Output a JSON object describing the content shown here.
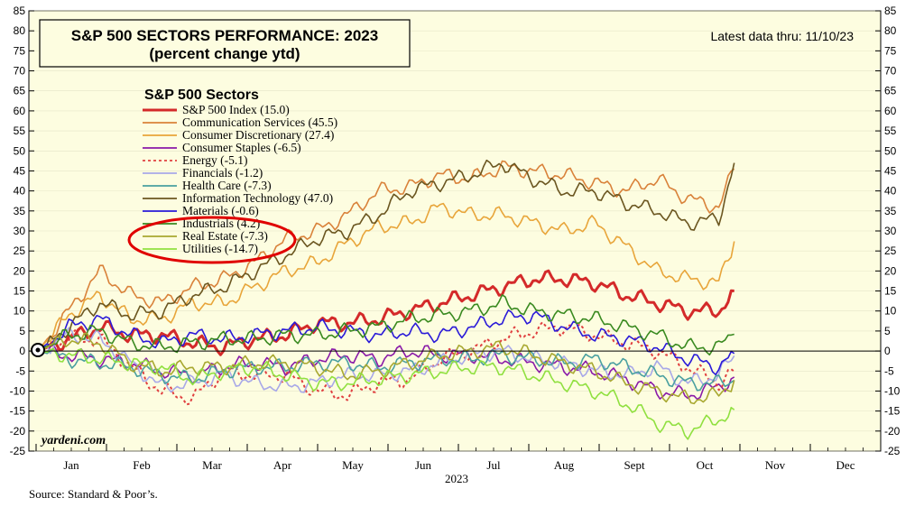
{
  "chart_data": {
    "type": "line",
    "title": "S&P 500 SECTORS PERFORMANCE: 2023",
    "subtitle": "(percent change ytd)",
    "note": "Latest data thru: 11/10/23",
    "legend_title": "S&P 500 Sectors",
    "xlabel": "2023",
    "source": "Source: Standard & Poor’s.",
    "brand": "yardeni.com",
    "ylim": [
      -25,
      85
    ],
    "yticks": [
      -25,
      -20,
      -15,
      -10,
      -5,
      0,
      5,
      10,
      15,
      20,
      25,
      30,
      35,
      40,
      45,
      50,
      55,
      60,
      65,
      70,
      75,
      80,
      85
    ],
    "months": [
      "Jan",
      "Feb",
      "Mar",
      "Apr",
      "May",
      "Jun",
      "Jul",
      "Aug",
      "Sept",
      "Oct",
      "Nov",
      "Dec"
    ],
    "x_weeks": [
      0,
      2,
      4,
      6,
      8,
      10,
      12,
      14,
      16,
      18,
      20,
      22,
      24,
      26,
      28,
      30,
      32,
      34,
      36,
      38,
      40,
      42,
      44,
      45
    ],
    "grid": true,
    "legend_position": "top-left",
    "annotation": "red ellipse around Real Estate and Utilities legend entries",
    "series": [
      {
        "name": "S&P 500 Index (15.0)",
        "color": "#d42a2a",
        "width": 3,
        "dash": "",
        "values": [
          0,
          3,
          6,
          4,
          4,
          2,
          1,
          3,
          4,
          7,
          7,
          8,
          10,
          12,
          14,
          16,
          18,
          18,
          17,
          14,
          12,
          10,
          10,
          15
        ]
      },
      {
        "name": "Communication Services (45.5)",
        "color": "#d9823a",
        "width": 1.6,
        "dash": "",
        "values": [
          0,
          10,
          20,
          14,
          12,
          16,
          18,
          22,
          28,
          30,
          34,
          40,
          41,
          44,
          43,
          46,
          45,
          44,
          42,
          40,
          43,
          38,
          36,
          45.5
        ]
      },
      {
        "name": "Consumer Discretionary (27.4)",
        "color": "#e8a53a",
        "width": 1.6,
        "dash": "",
        "values": [
          0,
          9,
          14,
          8,
          8,
          12,
          12,
          16,
          20,
          22,
          27,
          31,
          32,
          36,
          34,
          34,
          32,
          30,
          32,
          26,
          20,
          18,
          17,
          27.4
        ]
      },
      {
        "name": "Consumer Staples (-6.5)",
        "color": "#8a1aa8",
        "width": 1.6,
        "dash": "",
        "values": [
          0,
          -1,
          -2,
          -3,
          -5,
          -6,
          -4,
          -3,
          -4,
          -2,
          -1,
          -2,
          0,
          -1,
          -1,
          -2,
          -3,
          -4,
          -5,
          -7,
          -10,
          -11,
          -9,
          -6.5
        ]
      },
      {
        "name": "Energy (-5.1)",
        "color": "#e04040",
        "width": 2,
        "dash": "3,3",
        "values": [
          0,
          3,
          3,
          -4,
          -10,
          -12,
          -5,
          -6,
          -6,
          -10,
          -11,
          -8,
          -7,
          -2,
          0,
          3,
          5,
          6,
          4,
          2,
          0,
          -4,
          -8,
          -5.1
        ]
      },
      {
        "name": "Financials (-1.2)",
        "color": "#a8a8e8",
        "width": 1.6,
        "dash": "",
        "values": [
          0,
          4,
          3,
          -3,
          -9,
          -8,
          -6,
          -8,
          -9,
          -8,
          -6,
          -6,
          -5,
          -3,
          -1,
          0,
          -2,
          -3,
          -5,
          -6,
          -4,
          -8,
          -6,
          -1.2
        ]
      },
      {
        "name": "Health Care (-7.3)",
        "color": "#4aa0a0",
        "width": 1.6,
        "dash": "",
        "values": [
          0,
          -2,
          -3,
          -4,
          -6,
          -7,
          -5,
          -4,
          -4,
          -3,
          -3,
          -4,
          -3,
          -2,
          -2,
          -1,
          -2,
          -3,
          -2,
          -4,
          -6,
          -8,
          -8,
          -7.3
        ]
      },
      {
        "name": "Information Technology (47.0)",
        "color": "#6b5620",
        "width": 1.6,
        "dash": "",
        "values": [
          0,
          6,
          12,
          9,
          10,
          14,
          16,
          20,
          24,
          28,
          30,
          34,
          40,
          42,
          44,
          47,
          43,
          40,
          40,
          37,
          35,
          32,
          33,
          47.0
        ]
      },
      {
        "name": "Materials (-0.6)",
        "color": "#2a1ad8",
        "width": 1.6,
        "dash": "",
        "values": [
          0,
          6,
          8,
          4,
          2,
          4,
          3,
          4,
          5,
          6,
          5,
          4,
          5,
          4,
          6,
          8,
          9,
          6,
          4,
          3,
          1,
          -2,
          -4,
          -0.6
        ]
      },
      {
        "name": "Industrials (4.2)",
        "color": "#3a8a20",
        "width": 1.6,
        "dash": "",
        "values": [
          0,
          4,
          5,
          2,
          1,
          2,
          3,
          3,
          4,
          4,
          5,
          6,
          8,
          9,
          10,
          12,
          10,
          9,
          8,
          6,
          4,
          1,
          1,
          4.2
        ]
      },
      {
        "name": "Real Estate (-7.3)",
        "color": "#a8a830",
        "width": 1.6,
        "dash": "",
        "values": [
          0,
          3,
          2,
          -3,
          -5,
          -4,
          -4,
          -3,
          -3,
          -4,
          -6,
          -5,
          -3,
          -1,
          0,
          1,
          -1,
          -3,
          -5,
          -8,
          -10,
          -12,
          -11,
          -7.3
        ]
      },
      {
        "name": "Utilities (-14.7)",
        "color": "#90e040",
        "width": 1.6,
        "dash": "",
        "values": [
          0,
          -1,
          -2,
          -3,
          -4,
          -7,
          -5,
          -4,
          -6,
          -8,
          -8,
          -7,
          -6,
          -5,
          -4,
          -4,
          -6,
          -8,
          -10,
          -13,
          -18,
          -20,
          -17,
          -14.7
        ]
      }
    ]
  }
}
